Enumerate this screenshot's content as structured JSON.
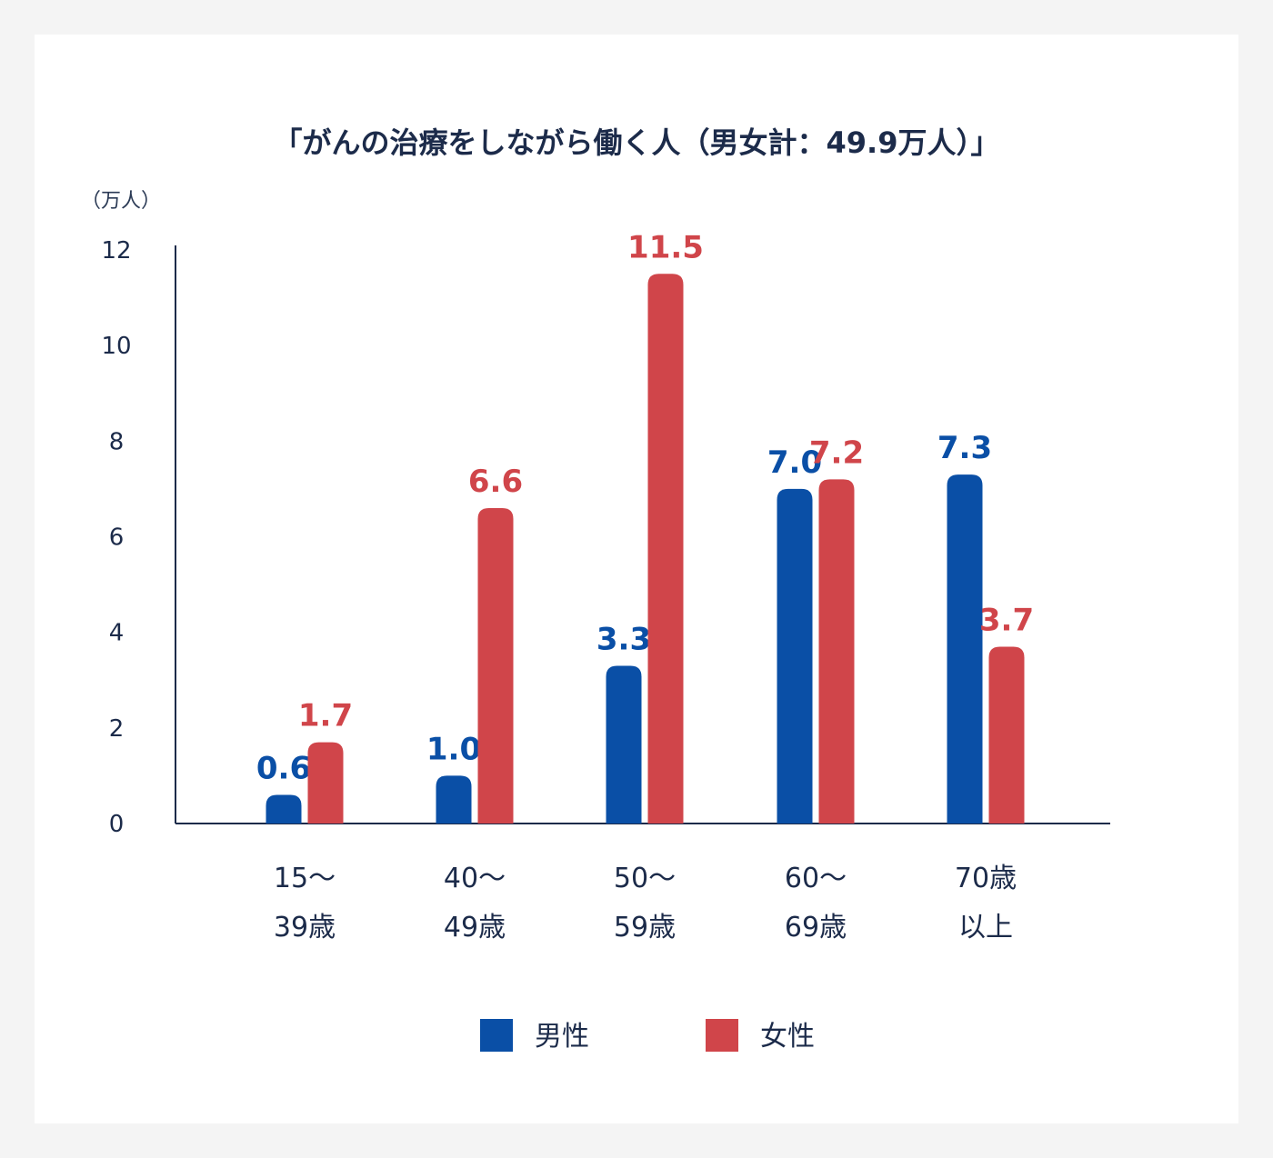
{
  "chart_data": {
    "type": "bar",
    "title": "「がんの治療をしながら働く人（男女計：49.9万人）」",
    "ylabel": "（万人）",
    "ylim": [
      0,
      12
    ],
    "yticks": [
      0,
      2,
      4,
      6,
      8,
      10,
      12
    ],
    "categories": [
      [
        "15～",
        "39歳"
      ],
      [
        "40～",
        "49歳"
      ],
      [
        "50～",
        "59歳"
      ],
      [
        "60～",
        "69歳"
      ],
      [
        "70歳",
        "以上"
      ]
    ],
    "series": [
      {
        "name": "男性",
        "color": "#0a4fa6",
        "values": [
          0.6,
          1.0,
          3.3,
          7.0,
          7.3
        ],
        "labels": [
          "0.6",
          "1.0",
          "3.3",
          "7.0",
          "7.3"
        ]
      },
      {
        "name": "女性",
        "color": "#d0454a",
        "values": [
          1.7,
          6.6,
          11.5,
          7.2,
          3.7
        ],
        "labels": [
          "1.7",
          "6.6",
          "11.5",
          "7.2",
          "3.7"
        ]
      }
    ],
    "legend": "bottom-center",
    "grid": false
  }
}
